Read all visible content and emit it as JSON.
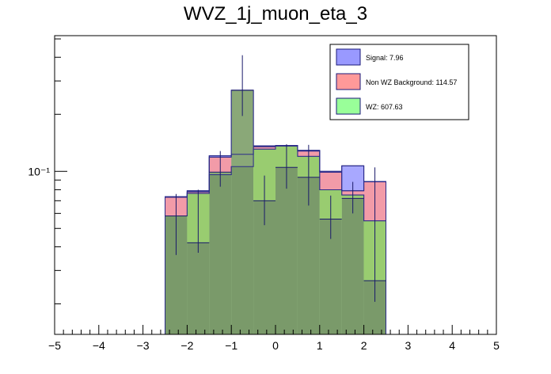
{
  "chart_data": {
    "type": "bar",
    "subtype": "stacked-histogram",
    "title": "WVZ_1j_muon_eta_3",
    "xlabel": "",
    "ylabel": "",
    "xlim": [
      -5,
      5
    ],
    "ylim": [
      0.0138,
      0.52
    ],
    "yscale": "log",
    "grid": false,
    "legend_position": "top-right",
    "xticks": [
      -5,
      -4,
      -3,
      -2,
      -1,
      0,
      1,
      2,
      3,
      4,
      5
    ],
    "yticks": [
      {
        "value": 0.1,
        "label": "10⁻¹"
      }
    ],
    "bin_edges": [
      -2.5,
      -2.0,
      -1.5,
      -1.0,
      -0.5,
      0.0,
      0.5,
      1.0,
      1.5,
      2.0,
      2.5
    ],
    "series": [
      {
        "name": "WZ: 607.63",
        "color": "#99ff99",
        "values": [
          0.0582,
          0.0765,
          0.096,
          0.106,
          0.131,
          0.137,
          0.12,
          0.08,
          0.075,
          0.0548
        ]
      },
      {
        "name": "Non WZ Background: 114.57",
        "color": "#ff9999",
        "values": [
          0.073,
          0.078,
          0.119,
          0.123,
          0.135,
          0.136,
          0.128,
          0.099,
          0.079,
          0.088
        ]
      },
      {
        "name": "Signal: 7.96",
        "color": "#9999ff",
        "values": [
          0.0735,
          0.079,
          0.121,
          0.268,
          0.1365,
          0.1365,
          0.129,
          0.1,
          0.107,
          0.0885
        ]
      }
    ],
    "data_points": {
      "values": [
        0.0582,
        0.042,
        0.099,
        0.268,
        0.07,
        0.105,
        0.093,
        0.056,
        0.072,
        0.0265
      ],
      "err_low": [
        0.0362,
        0.0372,
        0.083,
        0.196,
        0.052,
        0.081,
        0.066,
        0.044,
        0.06,
        0.0205
      ],
      "err_high": [
        0.076,
        0.08,
        0.128,
        0.41,
        0.095,
        0.139,
        0.138,
        0.0745,
        0.088,
        0.105
      ]
    }
  }
}
